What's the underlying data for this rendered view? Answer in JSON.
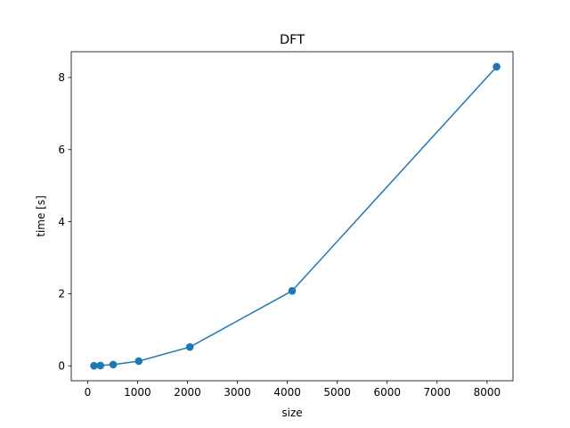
{
  "chart_data": {
    "type": "line",
    "title": "DFT",
    "xlabel": "size",
    "ylabel": "time [s]",
    "xlim": [
      -328,
      8520
    ],
    "ylim": [
      -0.415,
      8.716
    ],
    "x_ticks": [
      0,
      1000,
      2000,
      3000,
      4000,
      5000,
      6000,
      7000,
      8000
    ],
    "y_ticks": [
      0,
      2,
      4,
      6,
      8
    ],
    "grid": false,
    "legend": "none",
    "marker": "circle",
    "series": [
      {
        "color": "#1f77b4",
        "points": [
          {
            "x": 128,
            "y": 0.002
          },
          {
            "x": 256,
            "y": 0.008
          },
          {
            "x": 512,
            "y": 0.033
          },
          {
            "x": 1024,
            "y": 0.13
          },
          {
            "x": 2048,
            "y": 0.52
          },
          {
            "x": 4096,
            "y": 2.08
          },
          {
            "x": 8192,
            "y": 8.3
          }
        ]
      }
    ]
  }
}
